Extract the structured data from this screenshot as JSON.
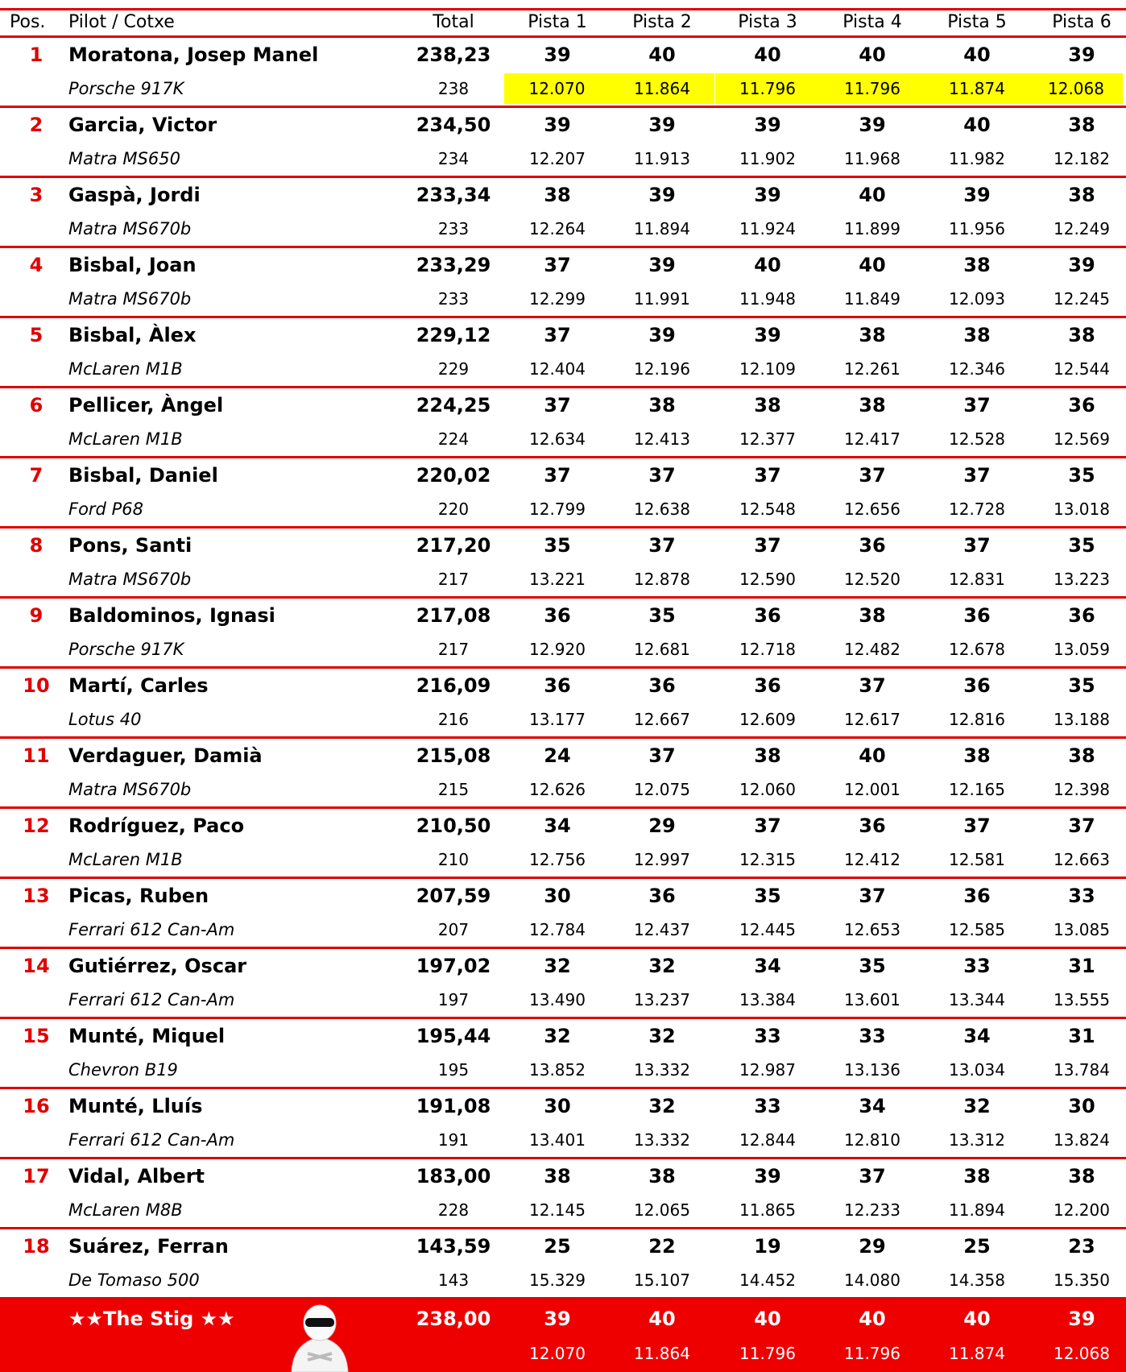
{
  "header": [
    "Pos.",
    "Pilot / Cotxe",
    "Total",
    "Pista 1",
    "Pista 2",
    "Pista 3",
    "Pista 4",
    "Pista 5",
    "Pista 6"
  ],
  "rows": [
    {
      "pos": "1",
      "pilot": "Moratona, Josep Manel",
      "total": "238,23",
      "laps": [
        "39",
        "40",
        "40",
        "40",
        "40",
        "39"
      ],
      "car": "Porsche 917K",
      "total_laps": "238",
      "times": [
        "12.070",
        "11.864",
        "11.796",
        "11.796",
        "11.874",
        "12.068"
      ]
    },
    {
      "pos": "2",
      "pilot": "Garcia, Victor",
      "total": "234,50",
      "laps": [
        "39",
        "39",
        "39",
        "39",
        "40",
        "38"
      ],
      "car": "Matra MS650",
      "total_laps": "234",
      "times": [
        "12.207",
        "11.913",
        "11.902",
        "11.968",
        "11.982",
        "12.182"
      ]
    },
    {
      "pos": "3",
      "pilot": "Gaspà, Jordi",
      "total": "233,34",
      "laps": [
        "38",
        "39",
        "39",
        "40",
        "39",
        "38"
      ],
      "car": "Matra MS670b",
      "total_laps": "233",
      "times": [
        "12.264",
        "11.894",
        "11.924",
        "11.899",
        "11.956",
        "12.249"
      ]
    },
    {
      "pos": "4",
      "pilot": "Bisbal, Joan",
      "total": "233,29",
      "laps": [
        "37",
        "39",
        "40",
        "40",
        "38",
        "39"
      ],
      "car": "Matra MS670b",
      "total_laps": "233",
      "times": [
        "12.299",
        "11.991",
        "11.948",
        "11.849",
        "12.093",
        "12.245"
      ]
    },
    {
      "pos": "5",
      "pilot": "Bisbal, Àlex",
      "total": "229,12",
      "laps": [
        "37",
        "39",
        "39",
        "38",
        "38",
        "38"
      ],
      "car": "McLaren M1B",
      "total_laps": "229",
      "times": [
        "12.404",
        "12.196",
        "12.109",
        "12.261",
        "12.346",
        "12.544"
      ]
    },
    {
      "pos": "6",
      "pilot": "Pellicer, Àngel",
      "total": "224,25",
      "laps": [
        "37",
        "38",
        "38",
        "38",
        "37",
        "36"
      ],
      "car": "McLaren M1B",
      "total_laps": "224",
      "times": [
        "12.634",
        "12.413",
        "12.377",
        "12.417",
        "12.528",
        "12.569"
      ]
    },
    {
      "pos": "7",
      "pilot": "Bisbal, Daniel",
      "total": "220,02",
      "laps": [
        "37",
        "37",
        "37",
        "37",
        "37",
        "35"
      ],
      "car": "Ford P68",
      "total_laps": "220",
      "times": [
        "12.799",
        "12.638",
        "12.548",
        "12.656",
        "12.728",
        "13.018"
      ]
    },
    {
      "pos": "8",
      "pilot": "Pons, Santi",
      "total": "217,20",
      "laps": [
        "35",
        "37",
        "37",
        "36",
        "37",
        "35"
      ],
      "car": "Matra MS670b",
      "total_laps": "217",
      "times": [
        "13.221",
        "12.878",
        "12.590",
        "12.520",
        "12.831",
        "13.223"
      ]
    },
    {
      "pos": "9",
      "pilot": "Baldominos, Ignasi",
      "total": "217,08",
      "laps": [
        "36",
        "35",
        "36",
        "38",
        "36",
        "36"
      ],
      "car": "Porsche 917K",
      "total_laps": "217",
      "times": [
        "12.920",
        "12.681",
        "12.718",
        "12.482",
        "12.678",
        "13.059"
      ]
    },
    {
      "pos": "10",
      "pilot": "Martí, Carles",
      "total": "216,09",
      "laps": [
        "36",
        "36",
        "36",
        "37",
        "36",
        "35"
      ],
      "car": "Lotus 40",
      "total_laps": "216",
      "times": [
        "13.177",
        "12.667",
        "12.609",
        "12.617",
        "12.816",
        "13.188"
      ]
    },
    {
      "pos": "11",
      "pilot": "Verdaguer, Damià",
      "total": "215,08",
      "laps": [
        "24",
        "37",
        "38",
        "40",
        "38",
        "38"
      ],
      "car": "Matra MS670b",
      "total_laps": "215",
      "times": [
        "12.626",
        "12.075",
        "12.060",
        "12.001",
        "12.165",
        "12.398"
      ]
    },
    {
      "pos": "12",
      "pilot": "Rodríguez, Paco",
      "total": "210,50",
      "laps": [
        "34",
        "29",
        "37",
        "36",
        "37",
        "37"
      ],
      "car": "McLaren M1B",
      "total_laps": "210",
      "times": [
        "12.756",
        "12.997",
        "12.315",
        "12.412",
        "12.581",
        "12.663"
      ]
    },
    {
      "pos": "13",
      "pilot": "Picas, Ruben",
      "total": "207,59",
      "laps": [
        "30",
        "36",
        "35",
        "37",
        "36",
        "33"
      ],
      "car": "Ferrari 612 Can-Am",
      "total_laps": "207",
      "times": [
        "12.784",
        "12.437",
        "12.445",
        "12.653",
        "12.585",
        "13.085"
      ]
    },
    {
      "pos": "14",
      "pilot": "Gutiérrez, Oscar",
      "total": "197,02",
      "laps": [
        "32",
        "32",
        "34",
        "35",
        "33",
        "31"
      ],
      "car": "Ferrari 612 Can-Am",
      "total_laps": "197",
      "times": [
        "13.490",
        "13.237",
        "13.384",
        "13.601",
        "13.344",
        "13.555"
      ]
    },
    {
      "pos": "15",
      "pilot": "Munté, Miquel",
      "total": "195,44",
      "laps": [
        "32",
        "32",
        "33",
        "33",
        "34",
        "31"
      ],
      "car": "Chevron B19",
      "total_laps": "195",
      "times": [
        "13.852",
        "13.332",
        "12.987",
        "13.136",
        "13.034",
        "13.784"
      ]
    },
    {
      "pos": "16",
      "pilot": "Munté, Lluís",
      "total": "191,08",
      "laps": [
        "30",
        "32",
        "33",
        "34",
        "32",
        "30"
      ],
      "car": "Ferrari 612 Can-Am",
      "total_laps": "191",
      "times": [
        "13.401",
        "13.332",
        "12.844",
        "12.810",
        "13.312",
        "13.824"
      ]
    },
    {
      "pos": "17",
      "pilot": "Vidal, Albert",
      "total": "183,00",
      "laps": [
        "38",
        "38",
        "39",
        "37",
        "38",
        "38"
      ],
      "car": "McLaren M8B",
      "total_laps": "228",
      "times": [
        "12.145",
        "12.065",
        "11.865",
        "12.233",
        "11.894",
        "12.200"
      ]
    },
    {
      "pos": "18",
      "pilot": "Suárez, Ferran",
      "total": "143,59",
      "laps": [
        "25",
        "22",
        "19",
        "29",
        "25",
        "23"
      ],
      "car": "De Tomaso 500",
      "total_laps": "143",
      "times": [
        "15.329",
        "15.107",
        "14.452",
        "14.080",
        "14.358",
        "15.350"
      ]
    }
  ],
  "stig": {
    "name": "★★The Stig ★★",
    "total": "238,00",
    "laps": [
      "39",
      "40",
      "40",
      "40",
      "40",
      "39"
    ],
    "times": [
      "12.070",
      "11.864",
      "11.796",
      "11.796",
      "11.874",
      "12.068"
    ]
  }
}
